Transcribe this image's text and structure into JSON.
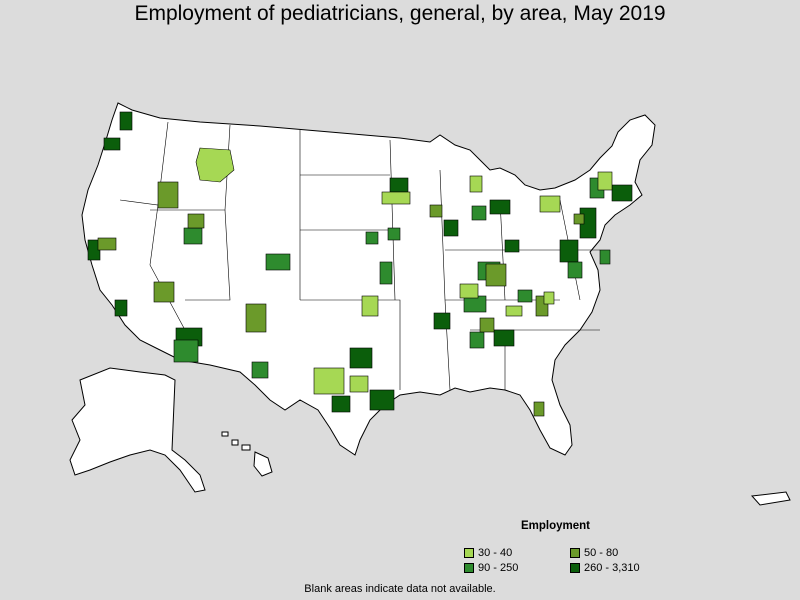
{
  "title": "Employment of pediatricians, general, by area, May 2019",
  "legend": {
    "title": "Employment",
    "items": [
      {
        "label": "30 - 40",
        "color": "#a6d854"
      },
      {
        "label": "50 - 80",
        "color": "#6b9a2a"
      },
      {
        "label": "90 - 250",
        "color": "#2e8b2e"
      },
      {
        "label": "260 - 3,310",
        "color": "#0b5e0b"
      }
    ]
  },
  "footnote": "Blank areas indicate data not available.",
  "colors": {
    "background": "#dcdcdc",
    "land": "#ffffff",
    "border": "#000000"
  }
}
